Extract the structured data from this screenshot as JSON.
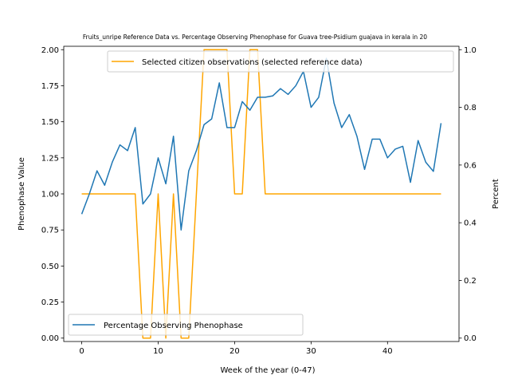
{
  "chart_data": {
    "type": "line",
    "title": "Fruits_unripe Reference Data vs. Percentage Observing Phenophase for Guava tree-Psidium guajava in kerala in 20",
    "xlabel": "Week of the year (0-47)",
    "ylabel_left": "Phenophase Value",
    "ylabel_right": "Percent",
    "xlim": [
      -2.35,
      49.35
    ],
    "ylim_left": [
      0,
      2.0
    ],
    "ylim_right": [
      0,
      1.0
    ],
    "x_ticks": [
      0,
      10,
      20,
      30,
      40
    ],
    "y_ticks_left": [
      0.0,
      0.25,
      0.5,
      0.75,
      1.0,
      1.25,
      1.5,
      1.75,
      2.0
    ],
    "y_ticks_right": [
      0.0,
      0.2,
      0.4,
      0.6,
      0.8,
      1.0
    ],
    "grid": false,
    "series": [
      {
        "name": "Selected citizen observations (selected reference data)",
        "axis": "left",
        "color": "#ffa500",
        "legend_position": "upper-right",
        "x": [
          0,
          1,
          2,
          3,
          4,
          5,
          6,
          7,
          8,
          9,
          10,
          11,
          12,
          13,
          14,
          15,
          16,
          17,
          18,
          19,
          20,
          21,
          22,
          23,
          24,
          25,
          26,
          27,
          28,
          29,
          30,
          31,
          32,
          33,
          34,
          35,
          36,
          37,
          38,
          39,
          40,
          41,
          42,
          43,
          44,
          45,
          46,
          47
        ],
        "values": [
          1,
          1,
          1,
          1,
          1,
          1,
          1,
          1,
          0,
          0,
          1,
          0,
          1,
          0,
          0,
          1,
          2,
          2,
          2,
          2,
          1,
          1,
          2,
          2,
          1,
          1,
          1,
          1,
          1,
          1,
          1,
          1,
          1,
          1,
          1,
          1,
          1,
          1,
          1,
          1,
          1,
          1,
          1,
          1,
          1,
          1,
          1,
          1
        ]
      },
      {
        "name": "Percentage Observing Phenophase",
        "axis": "right",
        "color": "#1f77b4",
        "legend_position": "lower-left",
        "x": [
          0,
          1,
          2,
          3,
          4,
          5,
          6,
          7,
          8,
          9,
          10,
          11,
          12,
          13,
          14,
          15,
          16,
          17,
          18,
          19,
          20,
          21,
          22,
          23,
          24,
          25,
          26,
          27,
          28,
          29,
          30,
          31,
          32,
          33,
          34,
          35,
          36,
          37,
          38,
          39,
          40,
          41,
          42,
          43,
          44,
          45,
          46,
          47
        ],
        "values": [
          0.43,
          0.5,
          0.58,
          0.53,
          0.61,
          0.67,
          0.65,
          0.73,
          0.465,
          0.5,
          0.625,
          0.535,
          0.7,
          0.375,
          0.58,
          0.65,
          0.74,
          0.76,
          0.885,
          0.73,
          0.73,
          0.82,
          0.79,
          0.835,
          0.835,
          0.84,
          0.865,
          0.845,
          0.875,
          0.925,
          0.8,
          0.835,
          0.97,
          0.815,
          0.73,
          0.775,
          0.7,
          0.585,
          0.69,
          0.69,
          0.625,
          0.655,
          0.665,
          0.54,
          0.685,
          0.61,
          0.578,
          0.745
        ]
      }
    ]
  }
}
